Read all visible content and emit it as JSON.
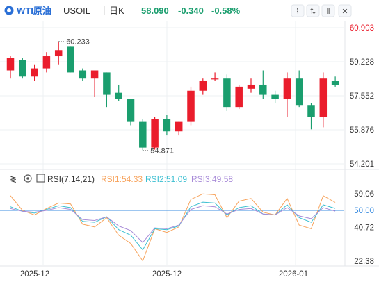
{
  "header": {
    "symbol_name": "WTI原油",
    "symbol_code": "USOIL",
    "period": "日K",
    "price": "58.090",
    "change": "-0.340",
    "change_pct": "-0.58%",
    "up_color": "#ea1d2c",
    "down_color": "#1a9e6e",
    "price_color": "#1a9e6e"
  },
  "toolbar": {
    "icons": [
      "line-chart-icon",
      "candlestick-type-icon",
      "indicator-bars-icon",
      "fullscreen-icon"
    ]
  },
  "rsi_header": {
    "collapse_icon": "collapse-arrows-icon",
    "settings_icon": "gear-icon",
    "expand_icon": "add-box-icon",
    "name": "RSI(7,14,21)",
    "rsi1": "RSI1:54.33",
    "rsi2": "RSI2:51.09",
    "rsi3": "RSI3:49.58",
    "rsi1_color": "#f7a35c",
    "rsi2_color": "#3cbfd1",
    "rsi3_color": "#a88bd8"
  },
  "chart_data": [
    {
      "type": "candlestick",
      "ylim": [
        54.201,
        60.903
      ],
      "yticks": [
        60.903,
        59.228,
        57.552,
        55.876,
        54.201
      ],
      "ytick_labels": [
        "60.903",
        "59.228",
        "57.552",
        "55.876",
        "54.201"
      ],
      "xtick_labels": [
        "2025-12",
        "2025-12",
        "2026-01"
      ],
      "annotations": [
        {
          "text": "60.233",
          "value": 60.233
        },
        {
          "text": "54.871",
          "value": 54.871
        }
      ],
      "candles": [
        {
          "o": 58.8,
          "h": 59.5,
          "l": 58.4,
          "c": 59.4
        },
        {
          "o": 59.3,
          "h": 59.4,
          "l": 58.4,
          "c": 58.5
        },
        {
          "o": 58.5,
          "h": 59.1,
          "l": 58.3,
          "c": 58.9
        },
        {
          "o": 58.9,
          "h": 59.7,
          "l": 58.7,
          "c": 59.5
        },
        {
          "o": 59.5,
          "h": 60.2,
          "l": 59.1,
          "c": 59.8
        },
        {
          "o": 60.0,
          "h": 60.0,
          "l": 58.7,
          "c": 58.7
        },
        {
          "o": 58.8,
          "h": 58.9,
          "l": 58.3,
          "c": 58.4
        },
        {
          "o": 58.4,
          "h": 58.8,
          "l": 57.5,
          "c": 58.8
        },
        {
          "o": 58.7,
          "h": 58.7,
          "l": 57.0,
          "c": 57.6
        },
        {
          "o": 57.7,
          "h": 58.1,
          "l": 57.3,
          "c": 57.4
        },
        {
          "o": 57.4,
          "h": 57.4,
          "l": 56.1,
          "c": 56.3
        },
        {
          "o": 56.3,
          "h": 56.4,
          "l": 54.871,
          "c": 55.0
        },
        {
          "o": 55.0,
          "h": 56.5,
          "l": 54.9,
          "c": 56.4
        },
        {
          "o": 56.4,
          "h": 56.6,
          "l": 55.6,
          "c": 55.8
        },
        {
          "o": 55.8,
          "h": 56.3,
          "l": 55.6,
          "c": 56.3
        },
        {
          "o": 56.3,
          "h": 58.0,
          "l": 56.1,
          "c": 57.8
        },
        {
          "o": 57.8,
          "h": 58.4,
          "l": 57.6,
          "c": 58.3
        },
        {
          "o": 58.4,
          "h": 58.7,
          "l": 58.3,
          "c": 58.4
        },
        {
          "o": 58.4,
          "h": 58.6,
          "l": 56.8,
          "c": 57.0
        },
        {
          "o": 57.0,
          "h": 58.1,
          "l": 56.9,
          "c": 58.0
        },
        {
          "o": 57.9,
          "h": 58.4,
          "l": 57.7,
          "c": 58.1
        },
        {
          "o": 58.1,
          "h": 58.8,
          "l": 57.4,
          "c": 57.6
        },
        {
          "o": 57.6,
          "h": 57.8,
          "l": 57.2,
          "c": 57.4
        },
        {
          "o": 57.4,
          "h": 58.7,
          "l": 56.5,
          "c": 58.4
        },
        {
          "o": 58.4,
          "h": 58.8,
          "l": 57.0,
          "c": 57.1
        },
        {
          "o": 57.1,
          "h": 57.2,
          "l": 55.9,
          "c": 56.5
        },
        {
          "o": 56.5,
          "h": 58.7,
          "l": 56.0,
          "c": 58.4
        },
        {
          "o": 58.3,
          "h": 58.5,
          "l": 58.0,
          "c": 58.09
        }
      ]
    },
    {
      "type": "line",
      "ylim": [
        22.38,
        59.06
      ],
      "ytick_labels": [
        "59.06",
        "50.00",
        "40.72",
        "22.38"
      ],
      "yticks": [
        59.06,
        50.0,
        40.72,
        22.38
      ],
      "reference_line": 50.0,
      "series": [
        {
          "name": "RSI1",
          "color": "#f7a35c",
          "values": [
            58.0,
            50.0,
            47.5,
            51.0,
            54.0,
            53.5,
            42.5,
            41.0,
            46.0,
            36.5,
            32.0,
            22.5,
            40.0,
            38.0,
            41.0,
            56.0,
            59.0,
            58.5,
            46.0,
            55.0,
            56.5,
            49.0,
            47.5,
            56.5,
            42.0,
            40.0,
            58.0,
            54.33
          ]
        },
        {
          "name": "RSI2",
          "color": "#3cbfd1",
          "values": [
            52.0,
            49.5,
            48.5,
            50.5,
            52.5,
            51.5,
            44.0,
            43.5,
            46.5,
            39.5,
            36.5,
            28.5,
            40.0,
            39.5,
            41.5,
            52.0,
            54.5,
            54.0,
            47.5,
            51.5,
            52.5,
            48.0,
            47.5,
            53.0,
            46.0,
            43.5,
            53.0,
            51.09
          ]
        },
        {
          "name": "RSI3",
          "color": "#a88bd8",
          "values": [
            51.0,
            49.5,
            49.0,
            50.0,
            51.5,
            50.5,
            45.0,
            44.5,
            46.5,
            41.5,
            39.0,
            32.5,
            40.5,
            40.0,
            42.0,
            50.5,
            52.5,
            52.0,
            48.0,
            50.5,
            51.0,
            48.0,
            47.5,
            51.5,
            47.0,
            45.5,
            51.5,
            49.58
          ]
        }
      ]
    }
  ]
}
